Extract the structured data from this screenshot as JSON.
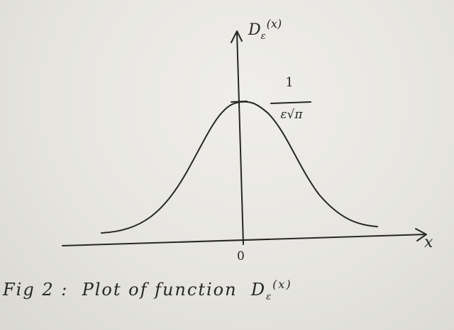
{
  "diagram": {
    "y_axis_label": {
      "symbol": "D",
      "subscript": "ε",
      "argument": "(x)"
    },
    "x_axis_label": "x",
    "origin_label": "0",
    "peak_label": {
      "numerator": "1",
      "denominator": "ε√π"
    },
    "caption": {
      "prefix": "Fig 2 :",
      "text": "Plot of function",
      "symbol": "D",
      "subscript": "ε",
      "argument": "(x)"
    }
  },
  "colors": {
    "paper": "#e7e6e1",
    "ink": "#262626"
  }
}
